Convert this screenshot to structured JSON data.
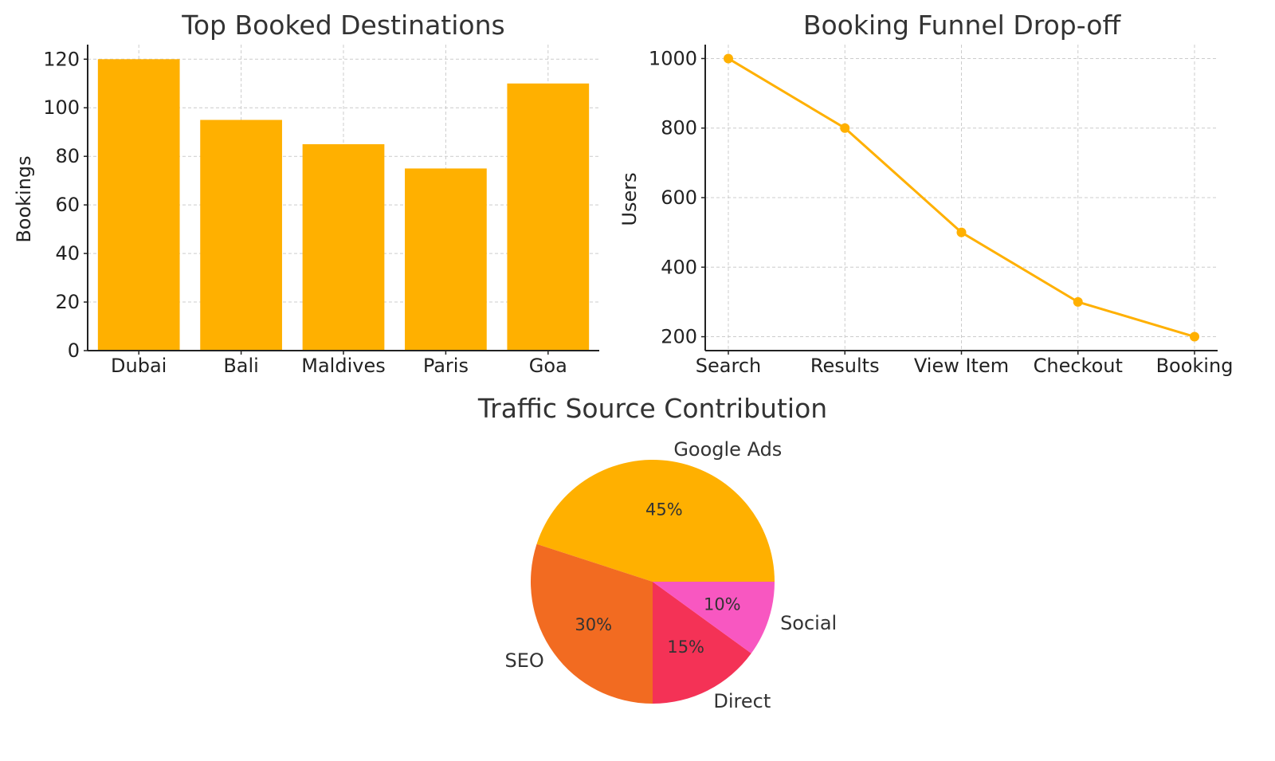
{
  "chart_data": [
    {
      "type": "bar",
      "title": "Top Booked Destinations",
      "xlabel": "",
      "ylabel": "Bookings",
      "categories": [
        "Dubai",
        "Bali",
        "Maldives",
        "Paris",
        "Goa"
      ],
      "values": [
        120,
        95,
        85,
        75,
        110
      ],
      "ylim": [
        0,
        126
      ],
      "yticks": [
        0,
        20,
        40,
        60,
        80,
        100,
        120
      ],
      "grid": true,
      "color": "#FFB000"
    },
    {
      "type": "line",
      "title": "Booking Funnel Drop-off",
      "xlabel": "",
      "ylabel": "Users",
      "categories": [
        "Search",
        "Results",
        "View Item",
        "Checkout",
        "Booking"
      ],
      "values": [
        1000,
        800,
        500,
        300,
        200
      ],
      "ylim": [
        160,
        1040
      ],
      "yticks": [
        200,
        400,
        600,
        800,
        1000
      ],
      "grid": true,
      "marker": "circle",
      "color": "#FFB000"
    },
    {
      "type": "pie",
      "title": "Traffic Source Contribution",
      "labels": [
        "Google Ads",
        "SEO",
        "Direct",
        "Social"
      ],
      "values": [
        45,
        30,
        15,
        10
      ],
      "pct_labels": [
        "45%",
        "30%",
        "15%",
        "10%"
      ],
      "colors": [
        "#FFB000",
        "#F26B21",
        "#F43256",
        "#F857C1"
      ],
      "start_angle": 0,
      "direction": "counterclockwise"
    }
  ]
}
